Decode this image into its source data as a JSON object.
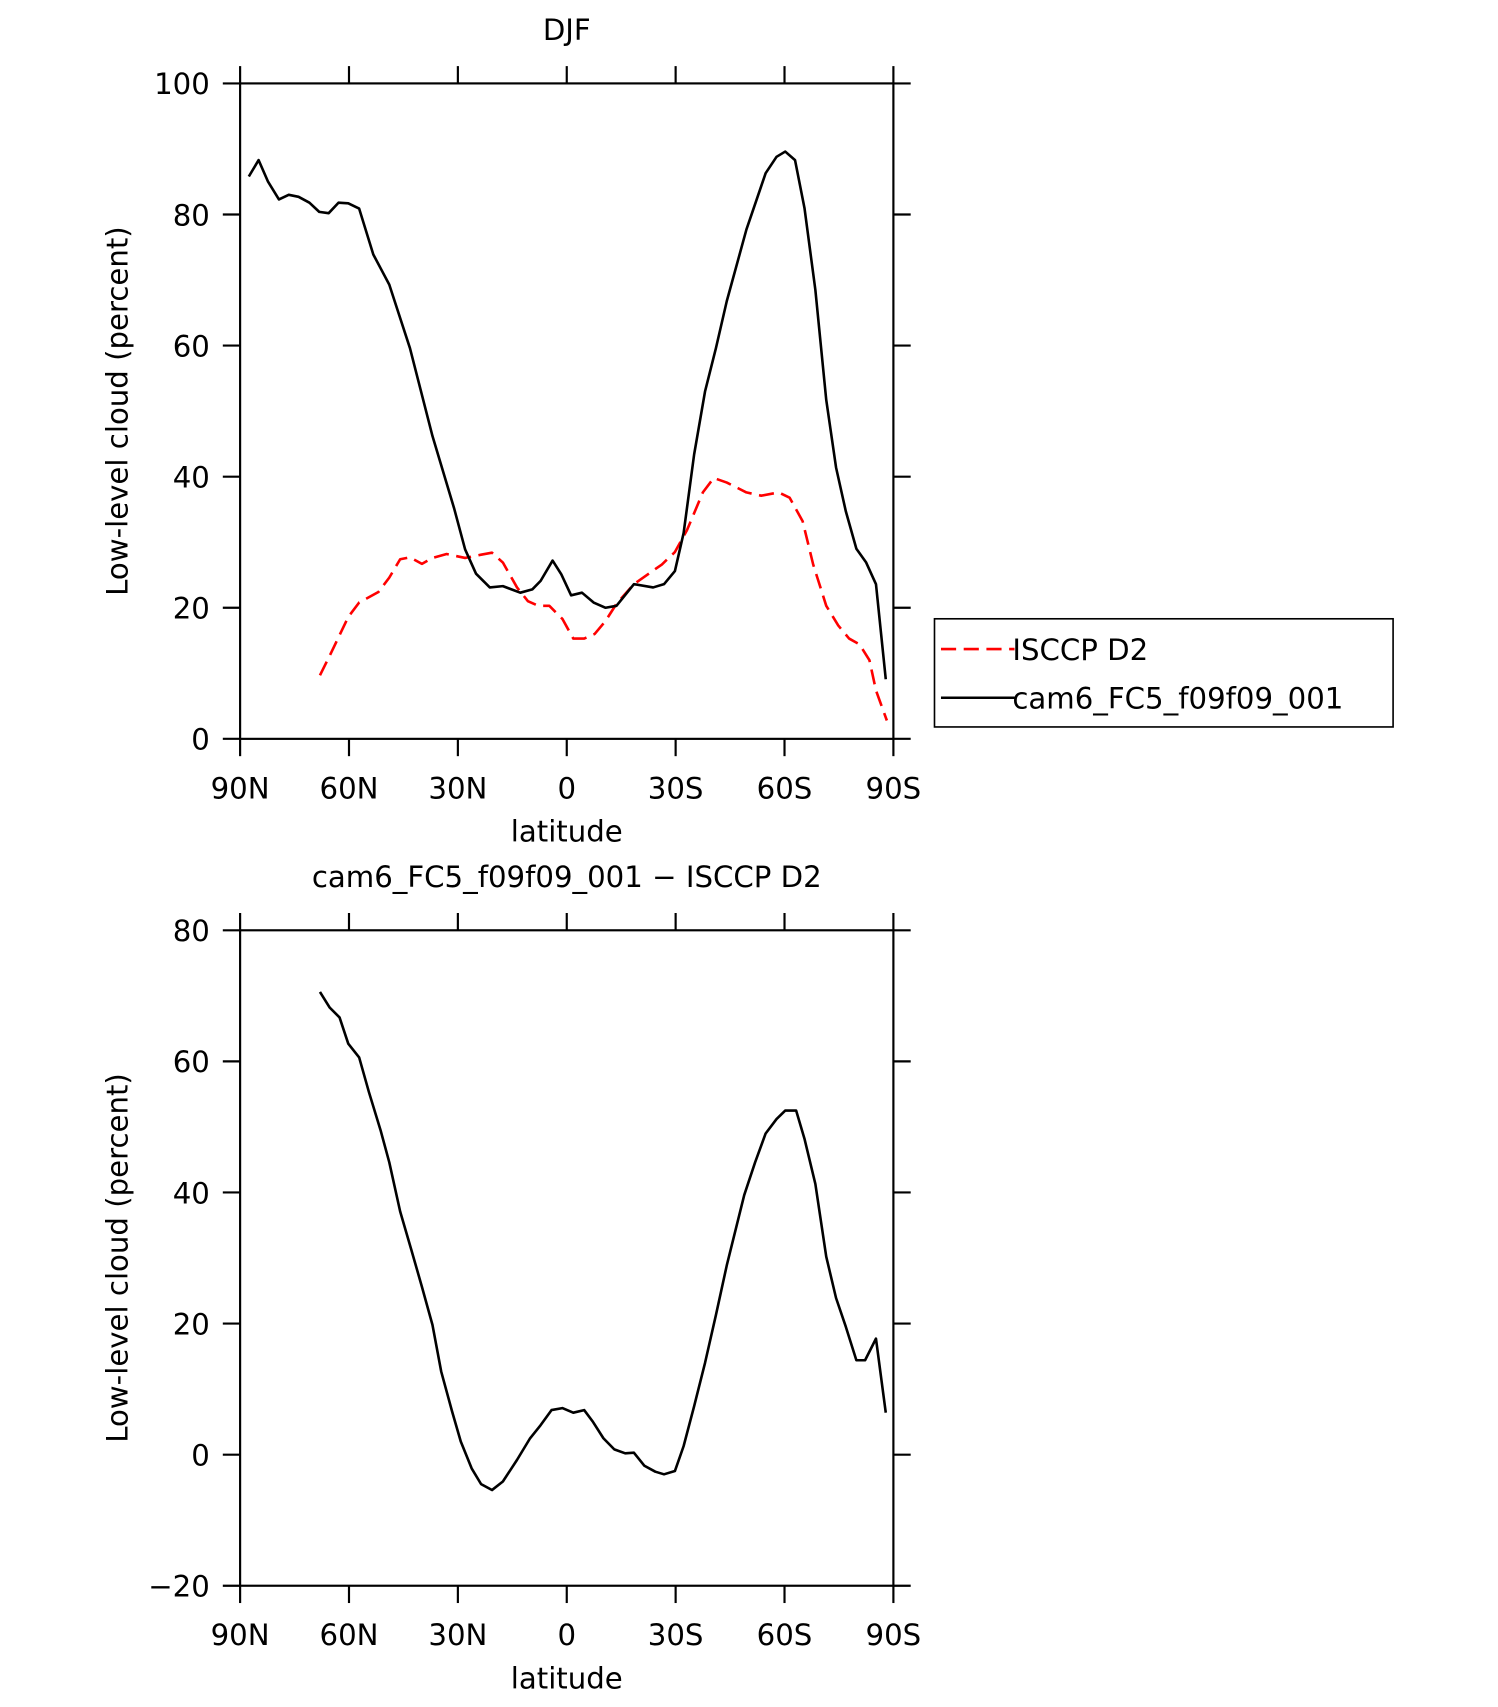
{
  "chart_data": [
    {
      "type": "line",
      "title": "DJF",
      "xlabel": "latitude",
      "ylabel": "Low-level cloud (percent)",
      "xlim": [
        90,
        -90
      ],
      "xticks": [
        {
          "value": 90,
          "label": "90N"
        },
        {
          "value": 60,
          "label": "60N"
        },
        {
          "value": 30,
          "label": "30N"
        },
        0,
        {
          "value": -30,
          "label": "30S"
        },
        {
          "value": -60,
          "label": "60S"
        },
        {
          "value": -90,
          "label": "90S"
        }
      ],
      "ylim": [
        0,
        100
      ],
      "yticks": [
        0,
        20,
        40,
        60,
        80,
        100
      ],
      "legend": "right",
      "series": [
        {
          "name": "ISCCP D2",
          "color": "#ff0000",
          "linestyle": "dashed",
          "x": [
            68,
            65.3,
            60.2,
            57.2,
            51.9,
            48.9,
            45.9,
            43.2,
            39.9,
            37,
            33.1,
            28,
            23.6,
            20.6,
            17.6,
            13.7,
            10.7,
            7.8,
            4.8,
            1.2,
            -1.8,
            -4.8,
            -7.7,
            -10.7,
            -13.7,
            -18.5,
            -22.6,
            -26.2,
            -29.8,
            -33.1,
            -37.5,
            -40.5,
            -44.1,
            -49.5,
            -53.6,
            -58.4,
            -61.4,
            -65,
            -67.9,
            -71.5,
            -74.8,
            -77.8,
            -80.7,
            -83.4,
            -85.2,
            -88.2
          ],
          "values": [
            9.7,
            12.7,
            18.6,
            20.8,
            22.4,
            24.6,
            27.4,
            27.7,
            26.7,
            27.6,
            28.2,
            27.6,
            28.1,
            28.4,
            26.9,
            23.1,
            21,
            20.3,
            20.3,
            18.3,
            15.3,
            15.3,
            16,
            18,
            20.6,
            23.6,
            25.2,
            26.6,
            28.5,
            31.8,
            37.6,
            39.8,
            39.1,
            37.6,
            37.1,
            37.6,
            36.8,
            33.2,
            26.6,
            20.3,
            17.3,
            15.3,
            14.4,
            12,
            7.4,
            2.8
          ]
        },
        {
          "name": "cam6_FC5_f09f09_001",
          "color": "#000000",
          "linestyle": "solid",
          "x": [
            87.6,
            84.9,
            82.3,
            79.3,
            76.6,
            73.9,
            70.9,
            68.2,
            65.6,
            62.9,
            60.2,
            57.2,
            53.3,
            48.9,
            43.2,
            37,
            31,
            28,
            25,
            21.2,
            17.6,
            12.8,
            9.5,
            7.2,
            3.9,
            1.5,
            -1.2,
            -4.2,
            -7.4,
            -10.7,
            -13.7,
            -18.5,
            -23.8,
            -26.8,
            -29.8,
            -32.2,
            -35.1,
            -38.1,
            -41.1,
            -44.1,
            -49.5,
            -54.8,
            -57.8,
            -60.2,
            -62.9,
            -65.5,
            -68.5,
            -71.5,
            -74.2,
            -76.9,
            -79.8,
            -82.5,
            -85.2,
            -87.9
          ],
          "values": [
            85.8,
            88.3,
            85,
            82.3,
            83,
            82.7,
            81.8,
            80.4,
            80.2,
            81.8,
            81.7,
            80.9,
            73.9,
            69.3,
            59.6,
            46.2,
            35.1,
            28.9,
            25.2,
            23.1,
            23.3,
            22.3,
            22.8,
            24.1,
            27.2,
            25.1,
            21.9,
            22.3,
            20.8,
            20,
            20.3,
            23.6,
            23.1,
            23.6,
            25.6,
            31.4,
            43.4,
            53,
            59.6,
            66.8,
            77.7,
            86.3,
            88.8,
            89.6,
            88.3,
            81,
            68.5,
            51.7,
            41.4,
            34.7,
            29,
            26.9,
            23.6,
            9.1
          ]
        }
      ]
    },
    {
      "type": "line",
      "title": "cam6_FC5_f09f09_001 − ISCCP D2",
      "xlabel": "latitude",
      "ylabel": "Low-level cloud (percent)",
      "xlim": [
        90,
        -90
      ],
      "xticks": [
        {
          "value": 90,
          "label": "90N"
        },
        {
          "value": 60,
          "label": "60N"
        },
        {
          "value": 30,
          "label": "30N"
        },
        0,
        {
          "value": -30,
          "label": "30S"
        },
        {
          "value": -60,
          "label": "60S"
        },
        {
          "value": -90,
          "label": "90S"
        }
      ],
      "ylim": [
        -20,
        80
      ],
      "yticks": [
        {
          "value": -20,
          "label": "−20"
        },
        0,
        20,
        40,
        60,
        80
      ],
      "color": "#000000",
      "x": [
        68,
        65.3,
        62.6,
        60.2,
        57.2,
        54.5,
        51.3,
        48.9,
        45.9,
        42.9,
        39.9,
        37,
        34.6,
        31.6,
        29.2,
        26.2,
        23.6,
        20.6,
        17.6,
        13.7,
        10.1,
        7.2,
        4.2,
        1.2,
        -1.8,
        -4.8,
        -7.1,
        -10.1,
        -13.1,
        -16.1,
        -18.5,
        -21.4,
        -24.4,
        -26.8,
        -29.8,
        -32.2,
        -35.1,
        -38.1,
        -41.1,
        -44.1,
        -48.9,
        -51.9,
        -54.8,
        -57.8,
        -60.2,
        -63.2,
        -65.5,
        -68.5,
        -71.5,
        -74.2,
        -76.9,
        -79.8,
        -82.2,
        -85.2,
        -87.9
      ],
      "values": [
        70.6,
        68.2,
        66.7,
        62.7,
        60.6,
        55.3,
        49.5,
        44.6,
        37.1,
        31.4,
        25.6,
        19.8,
        12.7,
        6.6,
        2,
        -2.1,
        -4.5,
        -5.4,
        -4.1,
        -0.8,
        2.5,
        4.5,
        6.8,
        7.1,
        6.4,
        6.8,
        5.1,
        2.5,
        0.8,
        0.2,
        0.3,
        -1.7,
        -2.6,
        -3,
        -2.5,
        1.3,
        7.4,
        14,
        21.3,
        28.9,
        39.6,
        44.6,
        49,
        51.2,
        52.5,
        52.5,
        48.2,
        41.3,
        30.2,
        23.9,
        19.5,
        14.4,
        14.4,
        17.7,
        6.4
      ]
    }
  ]
}
